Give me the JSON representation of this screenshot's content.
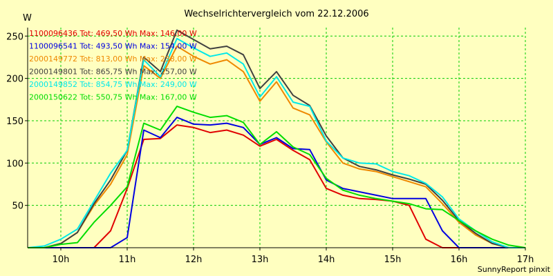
{
  "chart_data": {
    "type": "line",
    "title": "Wechselrichtervergleich vom 22.12.2006",
    "ylabel": "W",
    "xlabel": "",
    "xlim": [
      9.5,
      17.0
    ],
    "ylim": [
      0,
      260
    ],
    "grid": true,
    "legend_position": "top-left",
    "x_ticks": [
      {
        "value": 10,
        "label": "10h"
      },
      {
        "value": 11,
        "label": "11h"
      },
      {
        "value": 12,
        "label": "12h"
      },
      {
        "value": 13,
        "label": "13h"
      },
      {
        "value": 14,
        "label": "14h"
      },
      {
        "value": 15,
        "label": "15h"
      },
      {
        "value": 16,
        "label": "16h"
      },
      {
        "value": 17,
        "label": "17h"
      }
    ],
    "y_ticks": [
      {
        "value": 50,
        "label": "50"
      },
      {
        "value": 100,
        "label": "100"
      },
      {
        "value": 150,
        "label": "150"
      },
      {
        "value": 200,
        "label": "200"
      },
      {
        "value": 250,
        "label": "250"
      }
    ],
    "series": [
      {
        "name": "1100096436 Tot: 469,50 Wh Max: 146,00 W",
        "color": "#e00000",
        "points": [
          [
            9.5,
            0
          ],
          [
            9.75,
            0
          ],
          [
            10.0,
            0
          ],
          [
            10.25,
            0
          ],
          [
            10.5,
            0
          ],
          [
            10.75,
            20
          ],
          [
            11.0,
            70
          ],
          [
            11.25,
            128
          ],
          [
            11.5,
            129
          ],
          [
            11.75,
            145
          ],
          [
            12.0,
            142
          ],
          [
            12.25,
            136
          ],
          [
            12.5,
            139
          ],
          [
            12.75,
            133
          ],
          [
            13.0,
            120
          ],
          [
            13.25,
            128
          ],
          [
            13.5,
            115
          ],
          [
            13.75,
            104
          ],
          [
            14.0,
            70
          ],
          [
            14.25,
            62
          ],
          [
            14.5,
            58
          ],
          [
            14.75,
            57
          ],
          [
            15.0,
            55
          ],
          [
            15.25,
            50
          ],
          [
            15.5,
            10
          ],
          [
            15.75,
            0
          ],
          [
            16.0,
            0
          ],
          [
            16.25,
            0
          ],
          [
            16.5,
            0
          ],
          [
            16.75,
            0
          ],
          [
            17.0,
            0
          ]
        ]
      },
      {
        "name": "1100096541 Tot: 493,50 Wh Max: 154,00 W",
        "color": "#0000e0",
        "points": [
          [
            9.5,
            0
          ],
          [
            9.75,
            0
          ],
          [
            10.0,
            0
          ],
          [
            10.25,
            0
          ],
          [
            10.5,
            0
          ],
          [
            10.75,
            0
          ],
          [
            11.0,
            12
          ],
          [
            11.25,
            139
          ],
          [
            11.5,
            130
          ],
          [
            11.75,
            154
          ],
          [
            12.0,
            146
          ],
          [
            12.25,
            145
          ],
          [
            12.5,
            147
          ],
          [
            12.75,
            142
          ],
          [
            13.0,
            122
          ],
          [
            13.25,
            130
          ],
          [
            13.5,
            117
          ],
          [
            13.75,
            116
          ],
          [
            14.0,
            80
          ],
          [
            14.25,
            70
          ],
          [
            14.5,
            66
          ],
          [
            14.75,
            62
          ],
          [
            15.0,
            58
          ],
          [
            15.25,
            58
          ],
          [
            15.5,
            58
          ],
          [
            15.75,
            20
          ],
          [
            16.0,
            0
          ],
          [
            16.25,
            0
          ],
          [
            16.5,
            0
          ],
          [
            16.75,
            0
          ],
          [
            17.0,
            0
          ]
        ]
      },
      {
        "name": "2000149772 Tot: 813,00 Wh Max: 238,00 W",
        "color": "#ee8800",
        "points": [
          [
            9.5,
            0
          ],
          [
            9.75,
            0
          ],
          [
            10.0,
            5
          ],
          [
            10.25,
            18
          ],
          [
            10.5,
            50
          ],
          [
            10.75,
            75
          ],
          [
            11.0,
            110
          ],
          [
            11.25,
            215
          ],
          [
            11.5,
            200
          ],
          [
            11.75,
            238
          ],
          [
            12.0,
            226
          ],
          [
            12.25,
            217
          ],
          [
            12.5,
            222
          ],
          [
            12.75,
            208
          ],
          [
            13.0,
            173
          ],
          [
            13.25,
            196
          ],
          [
            13.5,
            165
          ],
          [
            13.75,
            157
          ],
          [
            14.0,
            125
          ],
          [
            14.25,
            100
          ],
          [
            14.5,
            93
          ],
          [
            14.75,
            90
          ],
          [
            15.0,
            84
          ],
          [
            15.25,
            78
          ],
          [
            15.5,
            72
          ],
          [
            15.75,
            52
          ],
          [
            16.0,
            30
          ],
          [
            16.25,
            15
          ],
          [
            16.5,
            5
          ],
          [
            16.75,
            0
          ],
          [
            17.0,
            0
          ]
        ]
      },
      {
        "name": "2000149801 Tot: 865,75 Wh Max: 257,00 W",
        "color": "#404040",
        "points": [
          [
            9.5,
            0
          ],
          [
            9.75,
            0
          ],
          [
            10.0,
            5
          ],
          [
            10.25,
            18
          ],
          [
            10.5,
            52
          ],
          [
            10.75,
            80
          ],
          [
            11.0,
            115
          ],
          [
            11.25,
            225
          ],
          [
            11.5,
            208
          ],
          [
            11.75,
            257
          ],
          [
            12.0,
            246
          ],
          [
            12.25,
            235
          ],
          [
            12.5,
            238
          ],
          [
            12.75,
            228
          ],
          [
            13.0,
            188
          ],
          [
            13.25,
            208
          ],
          [
            13.5,
            180
          ],
          [
            13.75,
            168
          ],
          [
            14.0,
            132
          ],
          [
            14.25,
            106
          ],
          [
            14.5,
            96
          ],
          [
            14.75,
            92
          ],
          [
            15.0,
            86
          ],
          [
            15.25,
            81
          ],
          [
            15.5,
            75
          ],
          [
            15.75,
            56
          ],
          [
            16.0,
            32
          ],
          [
            16.25,
            17
          ],
          [
            16.5,
            5
          ],
          [
            16.75,
            0
          ],
          [
            17.0,
            0
          ]
        ]
      },
      {
        "name": "2000149852 Tot: 854,75 Wh Max: 249,00 W",
        "color": "#00e8e8",
        "points": [
          [
            9.5,
            0
          ],
          [
            9.75,
            2
          ],
          [
            10.0,
            10
          ],
          [
            10.25,
            22
          ],
          [
            10.5,
            55
          ],
          [
            10.75,
            88
          ],
          [
            11.0,
            115
          ],
          [
            11.25,
            222
          ],
          [
            11.5,
            202
          ],
          [
            11.75,
            247
          ],
          [
            12.0,
            236
          ],
          [
            12.25,
            226
          ],
          [
            12.5,
            230
          ],
          [
            12.75,
            217
          ],
          [
            13.0,
            178
          ],
          [
            13.25,
            202
          ],
          [
            13.5,
            172
          ],
          [
            13.75,
            167
          ],
          [
            14.0,
            126
          ],
          [
            14.25,
            106
          ],
          [
            14.5,
            100
          ],
          [
            14.75,
            99
          ],
          [
            15.0,
            90
          ],
          [
            15.25,
            85
          ],
          [
            15.5,
            76
          ],
          [
            15.75,
            60
          ],
          [
            16.0,
            34
          ],
          [
            16.25,
            20
          ],
          [
            16.5,
            7
          ],
          [
            16.75,
            0
          ],
          [
            17.0,
            0
          ]
        ]
      },
      {
        "name": "2000150622 Tot: 550,75 Wh Max: 167,00 W",
        "color": "#00dd00",
        "points": [
          [
            9.5,
            0
          ],
          [
            9.75,
            0
          ],
          [
            10.0,
            4
          ],
          [
            10.25,
            6
          ],
          [
            10.5,
            30
          ],
          [
            10.75,
            50
          ],
          [
            11.0,
            72
          ],
          [
            11.25,
            147
          ],
          [
            11.5,
            139
          ],
          [
            11.75,
            167
          ],
          [
            12.0,
            160
          ],
          [
            12.25,
            154
          ],
          [
            12.5,
            156
          ],
          [
            12.75,
            148
          ],
          [
            13.0,
            122
          ],
          [
            13.25,
            137
          ],
          [
            13.5,
            119
          ],
          [
            13.75,
            110
          ],
          [
            14.0,
            82
          ],
          [
            14.25,
            68
          ],
          [
            14.5,
            62
          ],
          [
            14.75,
            58
          ],
          [
            15.0,
            55
          ],
          [
            15.25,
            52
          ],
          [
            15.5,
            46
          ],
          [
            15.75,
            45
          ],
          [
            16.0,
            32
          ],
          [
            16.25,
            20
          ],
          [
            16.5,
            10
          ],
          [
            16.75,
            3
          ],
          [
            17.0,
            0
          ]
        ]
      }
    ],
    "footer": "SunnyReport pinxit"
  }
}
